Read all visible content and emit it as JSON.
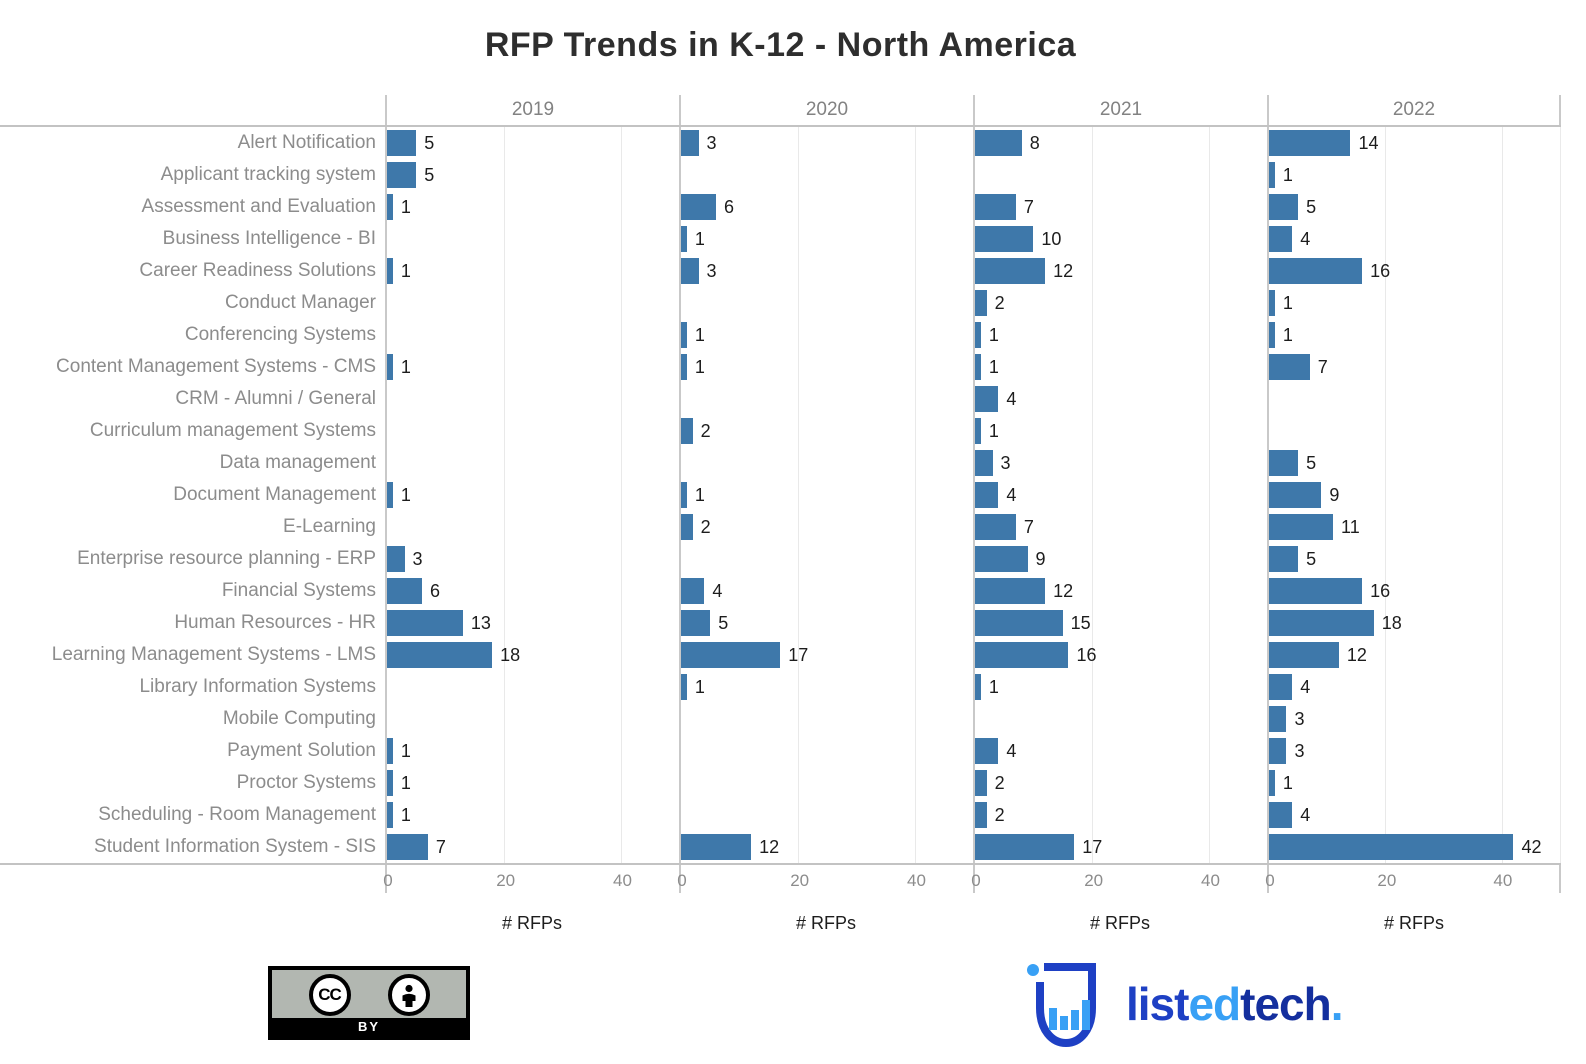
{
  "chart": {
    "title": "RFP Trends in K-12 - North America"
  },
  "chart_data": {
    "type": "bar",
    "orientation": "horizontal",
    "title": "RFP Trends in K-12 - North America",
    "categories": [
      "Alert Notification",
      "Applicant tracking system",
      "Assessment and Evaluation",
      "Business Intelligence - BI",
      "Career Readiness Solutions",
      "Conduct Manager",
      "Conferencing Systems",
      "Content Management Systems - CMS",
      "CRM - Alumni / General",
      "Curriculum management Systems",
      "Data management",
      "Document Management",
      "E-Learning",
      "Enterprise resource planning - ERP",
      "Financial Systems",
      "Human Resources - HR",
      "Learning Management Systems - LMS",
      "Library Information Systems",
      "Mobile Computing",
      "Payment Solution",
      "Proctor Systems",
      "Scheduling - Room Management",
      "Student Information System - SIS"
    ],
    "series": [
      {
        "name": "2019",
        "values": [
          5,
          5,
          1,
          null,
          1,
          null,
          null,
          1,
          null,
          null,
          null,
          1,
          null,
          3,
          6,
          13,
          18,
          null,
          null,
          1,
          1,
          1,
          7
        ]
      },
      {
        "name": "2020",
        "values": [
          3,
          null,
          6,
          1,
          3,
          null,
          1,
          1,
          null,
          2,
          null,
          1,
          2,
          null,
          4,
          5,
          17,
          1,
          null,
          null,
          null,
          null,
          12
        ]
      },
      {
        "name": "2021",
        "values": [
          8,
          null,
          7,
          10,
          12,
          2,
          1,
          1,
          4,
          1,
          3,
          4,
          7,
          9,
          12,
          15,
          16,
          1,
          null,
          4,
          2,
          2,
          17
        ]
      },
      {
        "name": "2022",
        "values": [
          14,
          1,
          5,
          4,
          16,
          1,
          1,
          7,
          null,
          null,
          5,
          9,
          11,
          5,
          16,
          18,
          12,
          4,
          3,
          3,
          1,
          4,
          42
        ]
      }
    ],
    "xlabel": "# RFPs",
    "xticks": [
      0,
      20,
      40
    ],
    "xlim": [
      0,
      50
    ],
    "grid": "light vertical gridlines at 20 and 40",
    "legend_position": "none",
    "bar_color": "#3e78aa"
  },
  "footer": {
    "cc_badge": {
      "cc_label": "CC",
      "by_label": "BY"
    },
    "brand": {
      "part1": "list",
      "part2": "ed",
      "part3": "tech",
      "part4": ".",
      "color_dark_blue": "#1e40c4",
      "color_navy": "#142f9e",
      "color_light_blue": "#38a0f5"
    }
  }
}
